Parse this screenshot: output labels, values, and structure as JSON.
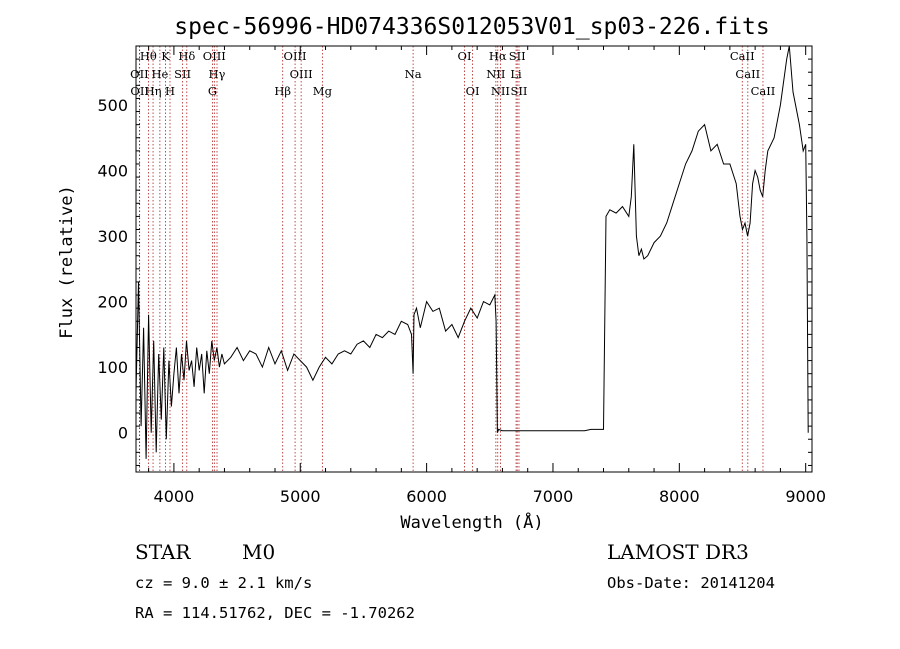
{
  "chart_data": {
    "type": "line",
    "title": "spec-56996-HD074336S012053V01_sp03-226.fits",
    "xlabel": "Wavelength (Å)",
    "ylabel": "Flux (relative)",
    "xlim": [
      3700,
      9050
    ],
    "ylim": [
      -60,
      590
    ],
    "xticks": [
      4000,
      5000,
      6000,
      7000,
      8000,
      9000
    ],
    "yticks": [
      0,
      100,
      200,
      300,
      400,
      500
    ],
    "grid": false,
    "line_color": "#000000",
    "marker_line_color": "#b22222",
    "lines": [
      {
        "label": "Hθ",
        "x": 3798,
        "row": 0
      },
      {
        "label": "OII",
        "x": 3727,
        "row": 1
      },
      {
        "label": "OII",
        "x": 3729,
        "row": 2
      },
      {
        "label": "Hη",
        "x": 3835,
        "row": 2
      },
      {
        "label": "He",
        "x": 3889,
        "row": 1
      },
      {
        "label": "K",
        "x": 3934,
        "row": 0
      },
      {
        "label": "H",
        "x": 3969,
        "row": 2
      },
      {
        "label": "SII",
        "x": 4069,
        "row": 1
      },
      {
        "label": "Hδ",
        "x": 4102,
        "row": 0
      },
      {
        "label": "OIII",
        "x": 4320,
        "row": 0
      },
      {
        "label": "Hγ",
        "x": 4341,
        "row": 1
      },
      {
        "label": "G",
        "x": 4305,
        "row": 2
      },
      {
        "label": "Hβ",
        "x": 4861,
        "row": 2
      },
      {
        "label": "OIII",
        "x": 4959,
        "row": 0
      },
      {
        "label": "OIII",
        "x": 5007,
        "row": 1
      },
      {
        "label": "Mg",
        "x": 5175,
        "row": 2
      },
      {
        "label": "Na",
        "x": 5893,
        "row": 1
      },
      {
        "label": "OI",
        "x": 6300,
        "row": 0
      },
      {
        "label": "OI",
        "x": 6364,
        "row": 2
      },
      {
        "label": "Hα",
        "x": 6563,
        "row": 0
      },
      {
        "label": "NII",
        "x": 6548,
        "row": 1
      },
      {
        "label": "NII",
        "x": 6584,
        "row": 2
      },
      {
        "label": "SII",
        "x": 6717,
        "row": 0
      },
      {
        "label": "Li",
        "x": 6708,
        "row": 1
      },
      {
        "label": "SII",
        "x": 6731,
        "row": 2
      },
      {
        "label": "CaII",
        "x": 8498,
        "row": 0
      },
      {
        "label": "CaII",
        "x": 8542,
        "row": 1
      },
      {
        "label": "CaII",
        "x": 8662,
        "row": 2
      }
    ],
    "series": [
      {
        "x": [
          3700,
          3720,
          3740,
          3760,
          3780,
          3800,
          3820,
          3840,
          3860,
          3880,
          3900,
          3920,
          3940,
          3960,
          3980,
          4000,
          4020,
          4040,
          4060,
          4080,
          4100,
          4120,
          4140,
          4160,
          4180,
          4200,
          4220,
          4240,
          4260,
          4280,
          4300,
          4320,
          4340,
          4360,
          4380,
          4400,
          4450,
          4500,
          4550,
          4600,
          4650,
          4700,
          4750,
          4800,
          4850,
          4900,
          4950,
          5000,
          5050,
          5100,
          5150,
          5200,
          5250,
          5300,
          5350,
          5400,
          5450,
          5500,
          5550,
          5600,
          5650,
          5700,
          5750,
          5800,
          5850,
          5880,
          5893,
          5900,
          5920,
          5950,
          6000,
          6050,
          6100,
          6150,
          6200,
          6250,
          6300,
          6350,
          6400,
          6450,
          6500,
          6540,
          6550,
          6560,
          6570,
          6600,
          6700,
          6800,
          6900,
          7000,
          7100,
          7150,
          7200,
          7250,
          7300,
          7350,
          7380,
          7400,
          7420,
          7450,
          7500,
          7550,
          7600,
          7620,
          7640,
          7660,
          7680,
          7700,
          7720,
          7750,
          7800,
          7850,
          7900,
          7950,
          8000,
          8050,
          8100,
          8150,
          8200,
          8250,
          8300,
          8350,
          8400,
          8450,
          8480,
          8500,
          8520,
          8540,
          8560,
          8580,
          8600,
          8620,
          8640,
          8660,
          8680,
          8700,
          8750,
          8800,
          8850,
          8870,
          8900,
          8950,
          8980,
          9000,
          9010,
          9020
        ],
        "y": [
          60,
          230,
          10,
          160,
          -40,
          180,
          0,
          140,
          -30,
          120,
          20,
          130,
          -10,
          110,
          40,
          90,
          130,
          60,
          120,
          80,
          140,
          95,
          110,
          70,
          130,
          95,
          120,
          60,
          125,
          90,
          140,
          110,
          130,
          100,
          120,
          105,
          115,
          130,
          110,
          125,
          120,
          100,
          130,
          105,
          125,
          95,
          120,
          110,
          100,
          80,
          100,
          115,
          105,
          120,
          125,
          120,
          135,
          140,
          130,
          150,
          145,
          155,
          150,
          170,
          165,
          150,
          90,
          180,
          190,
          160,
          200,
          185,
          190,
          155,
          165,
          145,
          170,
          190,
          175,
          200,
          195,
          210,
          170,
          0,
          5,
          3,
          3,
          3,
          3,
          3,
          3,
          3,
          3,
          3,
          5,
          5,
          5,
          5,
          330,
          340,
          335,
          345,
          330,
          360,
          440,
          300,
          270,
          280,
          265,
          270,
          290,
          300,
          320,
          350,
          380,
          410,
          430,
          460,
          470,
          430,
          440,
          410,
          410,
          380,
          330,
          310,
          320,
          300,
          320,
          380,
          400,
          390,
          370,
          360,
          400,
          430,
          450,
          500,
          570,
          590,
          520,
          470,
          430,
          440,
          300,
          0
        ]
      }
    ]
  },
  "info": {
    "obj_class": "STAR",
    "subclass": "M0",
    "survey": "LAMOST DR3",
    "cz": "cz = 9.0 ± 2.1 km/s",
    "obs_date": "Obs-Date: 20141204",
    "coords": "RA = 114.51762, DEC =  -1.70262"
  }
}
